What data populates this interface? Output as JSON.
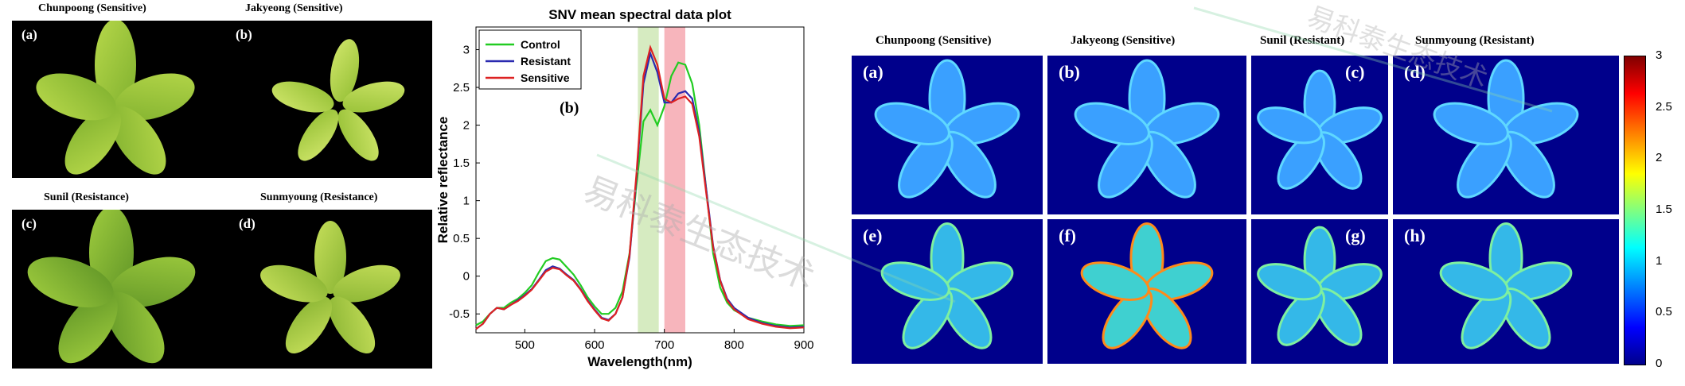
{
  "rgb_panels": [
    {
      "title": "Chunpoong (Sensitive)",
      "label": "(a)"
    },
    {
      "title": "Jakyeong (Sensitive)",
      "label": "(b)"
    },
    {
      "title": "Sunil (Resistance)",
      "label": "(c)"
    },
    {
      "title": "Sunmyoung (Resistance)",
      "label": "(d)"
    }
  ],
  "chart_data": {
    "type": "line",
    "title": "SNV mean spectral data plot",
    "panel_label": "(b)",
    "xlabel": "Wavelength(nm)",
    "ylabel": "Relative reflectance",
    "xlim": [
      430,
      900
    ],
    "ylim": [
      -0.75,
      3.3
    ],
    "xticks": [
      500,
      600,
      700,
      800,
      900
    ],
    "yticks": [
      -0.5,
      0,
      0.5,
      1,
      1.5,
      2,
      2.5,
      3
    ],
    "legend_position": "top-left",
    "highlight_bands": [
      {
        "range": [
          662,
          692
        ],
        "color": "#cfe8b6"
      },
      {
        "range": [
          700,
          730
        ],
        "color": "#f6a8b0"
      }
    ],
    "series": [
      {
        "name": "Control",
        "color": "#22cc22",
        "x": [
          430,
          440,
          450,
          460,
          470,
          480,
          490,
          500,
          510,
          520,
          530,
          540,
          550,
          560,
          570,
          580,
          590,
          600,
          610,
          620,
          630,
          640,
          650,
          660,
          670,
          680,
          690,
          700,
          710,
          720,
          730,
          740,
          750,
          760,
          770,
          780,
          790,
          800,
          820,
          840,
          860,
          880,
          900
        ],
        "y": [
          -0.65,
          -0.6,
          -0.5,
          -0.42,
          -0.42,
          -0.35,
          -0.3,
          -0.22,
          -0.12,
          0.05,
          0.2,
          0.24,
          0.22,
          0.12,
          0.02,
          -0.12,
          -0.28,
          -0.4,
          -0.5,
          -0.5,
          -0.42,
          -0.2,
          0.3,
          1.2,
          2.05,
          2.2,
          2.0,
          2.25,
          2.65,
          2.83,
          2.8,
          2.55,
          2.0,
          1.15,
          0.3,
          -0.15,
          -0.35,
          -0.45,
          -0.55,
          -0.6,
          -0.64,
          -0.66,
          -0.65
        ]
      },
      {
        "name": "Resistant",
        "color": "#2a2ab0",
        "x": [
          430,
          440,
          450,
          460,
          470,
          480,
          490,
          500,
          510,
          520,
          530,
          540,
          550,
          560,
          570,
          580,
          590,
          600,
          610,
          620,
          630,
          640,
          650,
          660,
          670,
          680,
          690,
          700,
          710,
          720,
          730,
          740,
          750,
          760,
          770,
          780,
          790,
          800,
          820,
          840,
          860,
          880,
          900
        ],
        "y": [
          -0.7,
          -0.63,
          -0.5,
          -0.42,
          -0.44,
          -0.38,
          -0.32,
          -0.25,
          -0.17,
          -0.05,
          0.08,
          0.13,
          0.1,
          0.02,
          -0.05,
          -0.17,
          -0.32,
          -0.44,
          -0.55,
          -0.58,
          -0.5,
          -0.28,
          0.25,
          1.3,
          2.55,
          2.95,
          2.7,
          2.3,
          2.3,
          2.42,
          2.45,
          2.35,
          1.9,
          1.15,
          0.4,
          -0.05,
          -0.3,
          -0.42,
          -0.55,
          -0.62,
          -0.66,
          -0.68,
          -0.67
        ]
      },
      {
        "name": "Sensitive",
        "color": "#dd2222",
        "x": [
          430,
          440,
          450,
          460,
          470,
          480,
          490,
          500,
          510,
          520,
          530,
          540,
          550,
          560,
          570,
          580,
          590,
          600,
          610,
          620,
          630,
          640,
          650,
          660,
          670,
          680,
          690,
          700,
          710,
          720,
          730,
          740,
          750,
          760,
          770,
          780,
          790,
          800,
          820,
          840,
          860,
          880,
          900
        ],
        "y": [
          -0.7,
          -0.63,
          -0.5,
          -0.42,
          -0.44,
          -0.38,
          -0.33,
          -0.26,
          -0.18,
          -0.06,
          0.06,
          0.11,
          0.09,
          0.01,
          -0.06,
          -0.18,
          -0.33,
          -0.45,
          -0.56,
          -0.59,
          -0.5,
          -0.28,
          0.28,
          1.35,
          2.65,
          3.03,
          2.8,
          2.35,
          2.3,
          2.35,
          2.38,
          2.28,
          1.85,
          1.1,
          0.38,
          -0.06,
          -0.32,
          -0.44,
          -0.57,
          -0.63,
          -0.67,
          -0.69,
          -0.68
        ]
      }
    ]
  },
  "heatmap": {
    "column_titles": [
      "Chunpoong (Sensitive)",
      "Jakyeong (Sensitive)",
      "Sunil (Resistant)",
      "Sunmyoung (Resistant)"
    ],
    "labels": [
      "(a)",
      "(b)",
      "(c)",
      "(d)",
      "(e)",
      "(f)",
      "(g)",
      "(h)"
    ],
    "colorbar": {
      "min": 0,
      "max": 3,
      "ticks": [
        "3",
        "2.5",
        "2",
        "1.5",
        "1",
        "0.5",
        "0"
      ]
    }
  },
  "watermark_text": "易科泰生态技术"
}
